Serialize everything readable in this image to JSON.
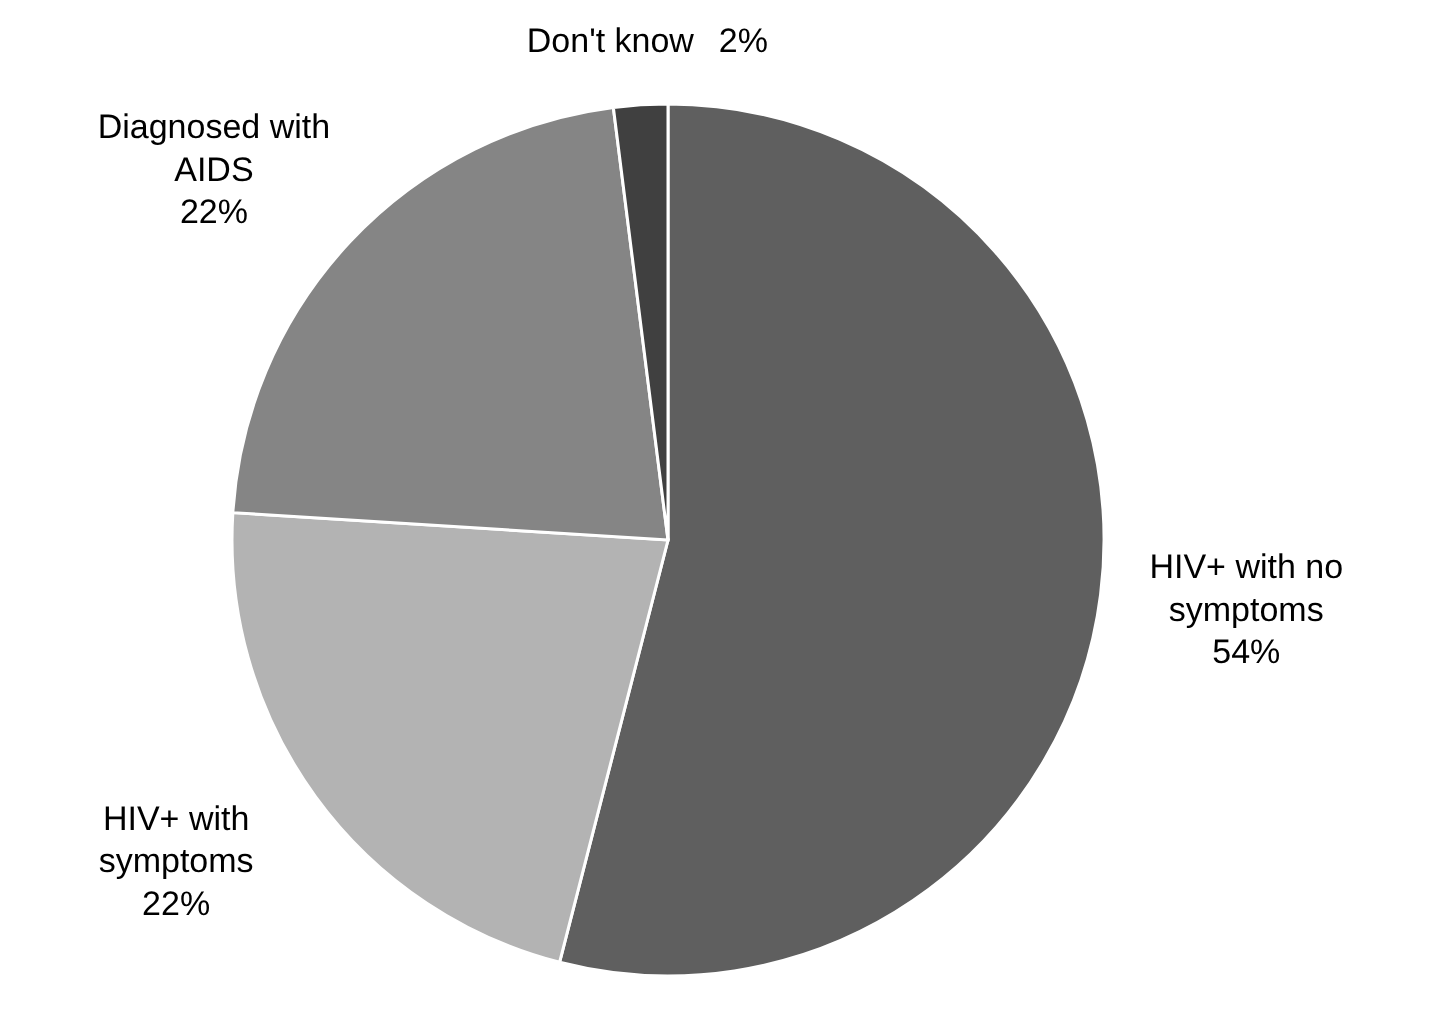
{
  "chart_data": {
    "type": "pie",
    "categories": [
      "HIV+ with no symptoms",
      "HIV+ with symptoms",
      "Diagnosed with AIDS",
      "Don't know"
    ],
    "values": [
      54,
      22,
      22,
      2
    ],
    "colors": [
      "#5f5f5f",
      "#b3b3b3",
      "#858585",
      "#404040"
    ],
    "value_labels": [
      "54%",
      "22%",
      "22%",
      "2%"
    ]
  }
}
